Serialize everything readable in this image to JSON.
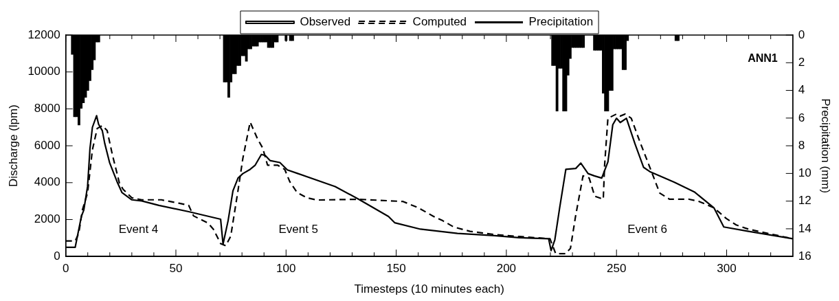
{
  "chart_data": {
    "type": "line",
    "xlabel": "Timesteps (10 minutes each)",
    "ylabel": "Discharge (lpm)",
    "y2label": "Precipitation (mm)",
    "xlim": [
      0,
      330
    ],
    "xticks": [
      0,
      {
        "value": 10,
        "label": null
      },
      {
        "value": 20,
        "label": null
      },
      {
        "value": 30,
        "label": null
      },
      {
        "value": 40,
        "label": null
      },
      50,
      {
        "value": 60,
        "label": null
      },
      {
        "value": 70,
        "label": null
      },
      {
        "value": 80,
        "label": null
      },
      {
        "value": 90,
        "label": null
      },
      100,
      {
        "value": 110,
        "label": null
      },
      {
        "value": 120,
        "label": null
      },
      {
        "value": 130,
        "label": null
      },
      {
        "value": 140,
        "label": null
      },
      150,
      {
        "value": 160,
        "label": null
      },
      {
        "value": 170,
        "label": null
      },
      {
        "value": 180,
        "label": null
      },
      {
        "value": 190,
        "label": null
      },
      200,
      {
        "value": 210,
        "label": null
      },
      {
        "value": 220,
        "label": null
      },
      {
        "value": 230,
        "label": null
      },
      {
        "value": 240,
        "label": null
      },
      250,
      {
        "value": 260,
        "label": null
      },
      {
        "value": 270,
        "label": null
      },
      {
        "value": 280,
        "label": null
      },
      {
        "value": 290,
        "label": null
      },
      300,
      {
        "value": 310,
        "label": null
      },
      {
        "value": 320,
        "label": null
      }
    ],
    "ylim": [
      0,
      12000
    ],
    "yticks": [
      0,
      2000,
      4000,
      6000,
      8000,
      10000,
      12000
    ],
    "y2lim": [
      16,
      0
    ],
    "y2ticks": [
      0,
      2,
      4,
      6,
      8,
      10,
      12,
      14,
      16
    ],
    "grid": false,
    "legend": "top",
    "annotations": [
      "Event 4",
      "Event 5",
      "Event 6",
      "ANN1"
    ],
    "series": [
      {
        "name": "Observed",
        "type": "line",
        "color": "#000000",
        "line_style": "solid",
        "x": [
          0,
          4.3,
          7.1,
          8.2,
          9.9,
          11,
          12.1,
          14,
          14.9,
          16.6,
          17.7,
          19.9,
          23.3,
          25.5,
          30,
          34.5,
          42.3,
          55.8,
          70.3,
          71.4,
          73.7,
          75.9,
          78.2,
          80.4,
          83.7,
          86,
          88.8,
          90.5,
          92.7,
          97.2,
          100.6,
          105,
          122.3,
          133,
          146.5,
          149.3,
          161,
          177.8,
          194.6,
          205.8,
          219.2,
          220.3,
          222,
          224.2,
          227,
          231.5,
          233.8,
          237.1,
          239.9,
          243.3,
          246.1,
          248.3,
          250,
          251.7,
          254.5,
          258.4,
          262.3,
          265.1,
          276.3,
          285.3,
          294.2,
          298.7,
          309.9,
          330
        ],
        "values": [
          500,
          500,
          2170,
          2520,
          3790,
          5850,
          7000,
          7630,
          7170,
          6820,
          6130,
          5090,
          4050,
          3470,
          3070,
          3010,
          2770,
          2430,
          2020,
          670,
          1940,
          3560,
          4250,
          4490,
          4720,
          4950,
          5530,
          5480,
          5200,
          5090,
          4690,
          4510,
          3790,
          3100,
          2170,
          1830,
          1480,
          1250,
          1130,
          1020,
          960,
          320,
          900,
          2640,
          4720,
          4770,
          5060,
          4490,
          4370,
          4250,
          5120,
          7140,
          7490,
          7260,
          7490,
          6100,
          4830,
          4600,
          4020,
          3500,
          2640,
          1600,
          1360,
          960
        ]
      },
      {
        "name": "Computed",
        "type": "line",
        "color": "#000000",
        "line_style": "dashed",
        "x": [
          0,
          4.3,
          5.9,
          7.6,
          9.9,
          12.1,
          14.3,
          16.6,
          18.8,
          21.1,
          24.4,
          26.1,
          30,
          34.5,
          43.4,
          51.3,
          55.8,
          58,
          64.7,
          67,
          70.3,
          72.6,
          74.9,
          78.2,
          80.4,
          83.7,
          87.1,
          89.4,
          91.6,
          96.1,
          99.4,
          101.7,
          105,
          109.5,
          114,
          133,
          153.1,
          160,
          167,
          171.1,
          176.1,
          183.5,
          194.7,
          205.9,
          219.8,
          222.4,
          226.9,
          229.1,
          231.4,
          234.8,
          237.6,
          240.1,
          244,
          244.6,
          246.1,
          250,
          251.7,
          253.9,
          256.7,
          260.6,
          264,
          269.6,
          274.1,
          283,
          287.5,
          294.2,
          299.8,
          304.3,
          309.9,
          330
        ],
        "values": [
          840,
          840,
          1250,
          2540,
          3440,
          5780,
          6940,
          7090,
          6820,
          5550,
          3960,
          3630,
          3180,
          3070,
          3070,
          2890,
          2770,
          2200,
          1800,
          1480,
          700,
          580,
          1100,
          3580,
          5320,
          7280,
          6360,
          5880,
          4950,
          4950,
          4720,
          4050,
          3470,
          3180,
          3060,
          3100,
          2980,
          2640,
          2170,
          1940,
          1600,
          1360,
          1190,
          1080,
          960,
          150,
          150,
          440,
          2170,
          4370,
          4250,
          3270,
          3100,
          4950,
          7490,
          7720,
          7610,
          7720,
          7490,
          6220,
          5180,
          3440,
          3100,
          3100,
          2980,
          2640,
          2060,
          1710,
          1480,
          960
        ]
      },
      {
        "name": "Precipitation",
        "type": "bar",
        "axis": "y2",
        "color": "#000000",
        "x": [
          3,
          4,
          5,
          6,
          7,
          8,
          9,
          10,
          11,
          12,
          13,
          14,
          15,
          72,
          73,
          74,
          75,
          76,
          77,
          78,
          79,
          80,
          81,
          82,
          83,
          84,
          85,
          86,
          87,
          88,
          89,
          90,
          91,
          92,
          93,
          94,
          95,
          96,
          100,
          102,
          103,
          221,
          222,
          223,
          224,
          225,
          226,
          227,
          228,
          229,
          230,
          231,
          232,
          233,
          234,
          235,
          240,
          241,
          242,
          243,
          244,
          245,
          246,
          247,
          248,
          249,
          250,
          251,
          252,
          253,
          254,
          255,
          277,
          278
        ],
        "values": [
          1.4,
          5.9,
          5.9,
          6.5,
          5.3,
          4.9,
          4.5,
          4.0,
          3.3,
          2.5,
          1.8,
          0.5,
          0.5,
          3.4,
          3.4,
          4.5,
          3.4,
          2.8,
          2.8,
          2.2,
          2.2,
          1.5,
          1.5,
          1.9,
          1.0,
          1.0,
          0.8,
          0.8,
          0.8,
          0.5,
          0.5,
          0.5,
          0.5,
          0.9,
          0.9,
          0.9,
          0.5,
          0.5,
          0.4,
          0.4,
          0.4,
          2.2,
          2.2,
          5.5,
          2.4,
          2.4,
          5.5,
          5.5,
          2.9,
          1.7,
          0.9,
          0.9,
          0.9,
          0.9,
          0.9,
          0.9,
          1.1,
          1.1,
          1.1,
          1.1,
          4.2,
          5.5,
          5.5,
          4.0,
          4.0,
          1.0,
          1.0,
          1.0,
          1.0,
          2.5,
          2.5,
          0.4,
          0.4,
          0.4
        ]
      }
    ]
  }
}
